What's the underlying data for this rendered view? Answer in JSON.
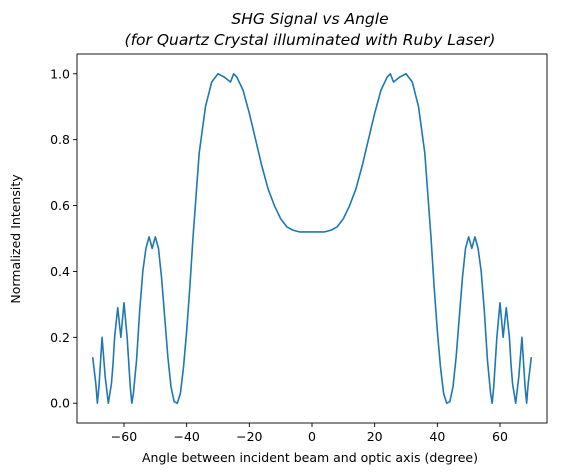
{
  "chart_data": {
    "type": "line",
    "title": "SHG Signal vs Angle",
    "subtitle": "(for Quartz Crystal illuminated with Ruby Laser)",
    "xlabel": "Angle between incident beam and optic axis (degree)",
    "ylabel": "Normalized Intensity",
    "xlim": [
      -75,
      75
    ],
    "ylim": [
      -0.06,
      1.06
    ],
    "xticks": [
      -60,
      -40,
      -20,
      0,
      20,
      40,
      60
    ],
    "yticks": [
      0.0,
      0.2,
      0.4,
      0.6,
      0.8,
      1.0
    ],
    "grid": false,
    "series": [
      {
        "color": "#1f77b4",
        "x": [
          -70,
          -69,
          -68.5,
          -68,
          -67,
          -66,
          -65,
          -64,
          -63.5,
          -63,
          -62,
          -61,
          -60,
          -59,
          -58,
          -57.5,
          -57,
          -56,
          -55,
          -54,
          -53,
          -52,
          -51,
          -50,
          -49,
          -48,
          -47,
          -46,
          -45,
          -44,
          -43,
          -42,
          -41,
          -40,
          -39,
          -38,
          -37,
          -36,
          -34,
          -32,
          -30,
          -28,
          -26,
          -25,
          -24,
          -22,
          -20,
          -18,
          -16,
          -14,
          -12,
          -10,
          -8,
          -6,
          -4,
          -2,
          0,
          2,
          4,
          6,
          8,
          10,
          12,
          14,
          16,
          18,
          20,
          22,
          24,
          25,
          26,
          28,
          30,
          32,
          34,
          36,
          37,
          38,
          39,
          40,
          41,
          42,
          43,
          44,
          45,
          46,
          47,
          48,
          49,
          50,
          51,
          52,
          53,
          54,
          55,
          56,
          57,
          57.5,
          58,
          59,
          60,
          61,
          62,
          63,
          63.5,
          64,
          65,
          66,
          67,
          68,
          68.5,
          69,
          70
        ],
        "y": [
          0.14,
          0.06,
          0.0,
          0.05,
          0.2,
          0.08,
          0.0,
          0.06,
          0.12,
          0.2,
          0.29,
          0.2,
          0.305,
          0.2,
          0.05,
          0.0,
          0.03,
          0.13,
          0.28,
          0.4,
          0.47,
          0.505,
          0.47,
          0.505,
          0.47,
          0.38,
          0.26,
          0.14,
          0.05,
          0.005,
          0.0,
          0.03,
          0.11,
          0.22,
          0.35,
          0.5,
          0.63,
          0.76,
          0.9,
          0.975,
          1.0,
          0.99,
          0.975,
          1.0,
          0.99,
          0.95,
          0.88,
          0.8,
          0.72,
          0.65,
          0.6,
          0.56,
          0.535,
          0.525,
          0.52,
          0.52,
          0.52,
          0.52,
          0.52,
          0.525,
          0.535,
          0.56,
          0.6,
          0.65,
          0.72,
          0.8,
          0.88,
          0.95,
          0.99,
          1.0,
          0.975,
          0.99,
          1.0,
          0.975,
          0.9,
          0.76,
          0.63,
          0.5,
          0.35,
          0.22,
          0.11,
          0.03,
          0.0,
          0.005,
          0.05,
          0.14,
          0.26,
          0.38,
          0.47,
          0.505,
          0.47,
          0.505,
          0.47,
          0.4,
          0.28,
          0.13,
          0.03,
          0.0,
          0.05,
          0.2,
          0.305,
          0.2,
          0.29,
          0.2,
          0.12,
          0.06,
          0.0,
          0.08,
          0.2,
          0.05,
          0.0,
          0.06,
          0.14
        ]
      }
    ]
  }
}
